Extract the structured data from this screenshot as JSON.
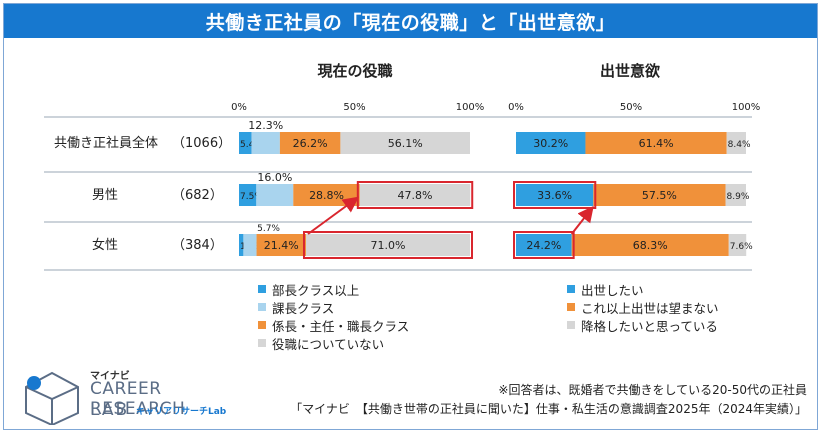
{
  "title": "共働き正社員の「現在の役職」と「出世意欲」",
  "chart_data": [
    {
      "type": "bar",
      "orientation": "horizontal-stacked",
      "title": "現在の役職",
      "ticks": [
        "0%",
        "50%",
        "100%"
      ],
      "categories": [
        {
          "label": "共働き正社員全体",
          "n": "（1066）"
        },
        {
          "label": "男性",
          "n": "（682）"
        },
        {
          "label": "女性",
          "n": "（384）"
        }
      ],
      "series": [
        {
          "name": "部長クラス以上",
          "color": "#2f9fe0",
          "values": [
            5.4,
            7.5,
            1.9
          ]
        },
        {
          "name": "課長クラス",
          "color": "#a9d4ee",
          "values": [
            12.3,
            16.0,
            5.7
          ]
        },
        {
          "name": "係長・主任・職長クラス",
          "color": "#f0913a",
          "values": [
            26.2,
            28.8,
            21.4
          ]
        },
        {
          "name": "役職についていない",
          "color": "#d6d6d6",
          "values": [
            56.1,
            47.8,
            71.0
          ]
        }
      ],
      "labels": [
        [
          "5.4%",
          "12.3%",
          "26.2%",
          "56.1%"
        ],
        [
          "7.5%",
          "16.0%",
          "28.8%",
          "47.8%"
        ],
        [
          "1.9%",
          "5.7%",
          "21.4%",
          "71.0%"
        ]
      ],
      "highlights": [
        "男性:役職についていない",
        "女性:役職についていない"
      ],
      "xlim": [
        0,
        100
      ],
      "legend": "bottom-left"
    },
    {
      "type": "bar",
      "orientation": "horizontal-stacked",
      "title": "出世意欲",
      "ticks": [
        "0%",
        "50%",
        "100%"
      ],
      "categories": [
        {
          "label": "共働き正社員全体",
          "n": "（1066）"
        },
        {
          "label": "男性",
          "n": "（682）"
        },
        {
          "label": "女性",
          "n": "（384）"
        }
      ],
      "series": [
        {
          "name": "出世したい",
          "color": "#2f9fe0",
          "values": [
            30.2,
            33.6,
            24.2
          ]
        },
        {
          "name": "これ以上出世は望まない",
          "color": "#f0913a",
          "values": [
            61.4,
            57.5,
            68.3
          ]
        },
        {
          "name": "降格したいと思っている",
          "color": "#d6d6d6",
          "values": [
            8.4,
            8.9,
            7.6
          ]
        }
      ],
      "labels": [
        [
          "30.2%",
          "61.4%",
          "8.4%"
        ],
        [
          "33.6%",
          "57.5%",
          "8.9%"
        ],
        [
          "24.2%",
          "68.3%",
          "7.6%"
        ]
      ],
      "highlights": [
        "男性:出世したい",
        "女性:出世したい"
      ],
      "xlim": [
        0,
        100
      ],
      "legend": "bottom-right"
    }
  ],
  "logo": {
    "brand": "マイナビ",
    "line1": "CAREER RESEARCH",
    "line2": "LAB",
    "line3": "キャリアリサーチLab"
  },
  "notes": {
    "respondents": "※回答者は、既婚者で共働きをしている20-50代の正社員",
    "source": "「マイナビ　【共働き世帯の正社員に聞いた】仕事・私生活の意識調査2025年（2024年実績）」"
  }
}
